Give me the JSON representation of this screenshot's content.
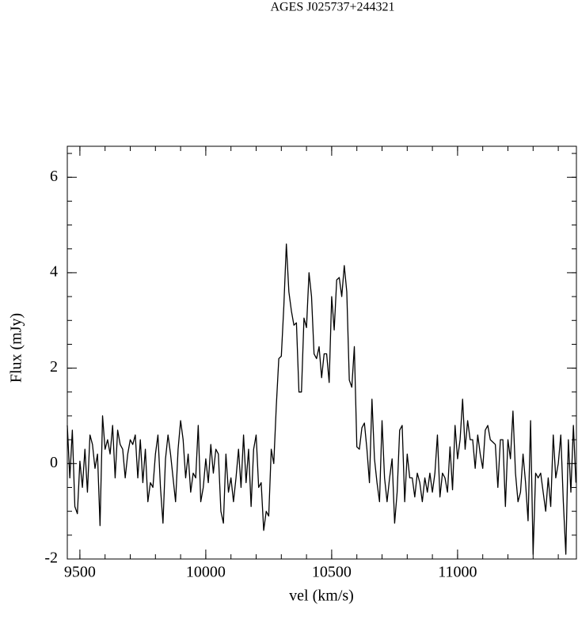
{
  "chart_data": {
    "type": "line",
    "title": "AGES J025737+244321",
    "xlabel": "vel (km/s)",
    "ylabel": "Flux (mJy)",
    "color": "#000000",
    "xlim": [
      9450,
      11472
    ],
    "ylim": [
      -2,
      6.65
    ],
    "xticks": [
      9500,
      10000,
      10500,
      11000
    ],
    "yticks": [
      -2,
      0,
      2,
      4,
      6
    ],
    "xminorticks": [
      9500,
      9600,
      9700,
      9800,
      9900,
      10000,
      10100,
      10200,
      10300,
      10400,
      10500,
      10600,
      10700,
      10800,
      10900,
      11000,
      11100,
      11200,
      11300,
      11400
    ],
    "yminorticks": [
      -1.5,
      -1,
      -0.5,
      0,
      0.5,
      1,
      1.5,
      2,
      2.5,
      3,
      3.5,
      4,
      4.5,
      5,
      5.5,
      6,
      6.5
    ],
    "x": [
      9450,
      9460,
      9470,
      9480,
      9490,
      9500,
      9510,
      9520,
      9530,
      9540,
      9550,
      9560,
      9570,
      9580,
      9590,
      9600,
      9610,
      9620,
      9630,
      9640,
      9650,
      9660,
      9670,
      9680,
      9690,
      9700,
      9710,
      9720,
      9730,
      9740,
      9750,
      9760,
      9770,
      9780,
      9790,
      9800,
      9810,
      9820,
      9830,
      9840,
      9850,
      9860,
      9870,
      9880,
      9890,
      9900,
      9910,
      9920,
      9930,
      9940,
      9950,
      9960,
      9970,
      9980,
      9990,
      10000,
      10010,
      10020,
      10030,
      10040,
      10050,
      10060,
      10070,
      10080,
      10090,
      10100,
      10110,
      10120,
      10130,
      10140,
      10150,
      10160,
      10170,
      10180,
      10190,
      10200,
      10210,
      10220,
      10230,
      10240,
      10250,
      10260,
      10270,
      10280,
      10290,
      10300,
      10310,
      10320,
      10330,
      10340,
      10350,
      10360,
      10370,
      10380,
      10390,
      10400,
      10410,
      10420,
      10430,
      10440,
      10450,
      10460,
      10470,
      10480,
      10490,
      10500,
      10510,
      10520,
      10530,
      10540,
      10550,
      10560,
      10570,
      10580,
      10590,
      10600,
      10610,
      10620,
      10630,
      10640,
      10650,
      10660,
      10670,
      10680,
      10690,
      10700,
      10710,
      10720,
      10730,
      10740,
      10750,
      10760,
      10770,
      10780,
      10790,
      10800,
      10810,
      10820,
      10830,
      10840,
      10850,
      10860,
      10870,
      10880,
      10890,
      10900,
      10910,
      10920,
      10930,
      10940,
      10950,
      10960,
      10970,
      10980,
      10990,
      11000,
      11010,
      11020,
      11030,
      11040,
      11050,
      11060,
      11070,
      11080,
      11090,
      11100,
      11110,
      11120,
      11130,
      11140,
      11150,
      11160,
      11170,
      11180,
      11190,
      11200,
      11210,
      11220,
      11230,
      11240,
      11250,
      11260,
      11270,
      11280,
      11290,
      11300,
      11310,
      11320,
      11330,
      11340,
      11350,
      11360,
      11370,
      11380,
      11390,
      11400,
      11410,
      11420,
      11430,
      11440,
      11450,
      11460,
      11470
    ],
    "values": [
      0.8,
      -0.3,
      0.7,
      -0.9,
      -1.05,
      0.05,
      -0.5,
      0.3,
      -0.6,
      0.6,
      0.4,
      -0.1,
      0.2,
      -1.3,
      1.0,
      0.3,
      0.5,
      0.2,
      0.8,
      -0.3,
      0.7,
      0.4,
      0.3,
      -0.3,
      0.2,
      0.5,
      0.4,
      0.6,
      -0.3,
      0.5,
      -0.4,
      0.3,
      -0.8,
      -0.4,
      -0.5,
      0.2,
      0.6,
      -0.5,
      -1.25,
      0.1,
      0.6,
      0.2,
      -0.3,
      -0.8,
      0.3,
      0.9,
      0.5,
      -0.3,
      0.2,
      -0.6,
      -0.2,
      -0.3,
      0.8,
      -0.8,
      -0.5,
      0.1,
      -0.4,
      0.4,
      -0.2,
      0.3,
      0.2,
      -1.0,
      -1.25,
      0.2,
      -0.6,
      -0.3,
      -0.8,
      -0.3,
      0.3,
      -0.5,
      0.6,
      -0.4,
      0.3,
      -0.9,
      0.3,
      0.6,
      -0.5,
      -0.4,
      -1.4,
      -1.0,
      -1.1,
      0.3,
      0.0,
      1.2,
      2.2,
      2.25,
      3.3,
      4.6,
      3.6,
      3.2,
      2.9,
      2.95,
      1.5,
      1.5,
      3.05,
      2.85,
      4.0,
      3.5,
      2.3,
      2.2,
      2.45,
      1.8,
      2.3,
      2.3,
      1.7,
      3.5,
      2.8,
      3.85,
      3.9,
      3.5,
      4.15,
      3.6,
      1.75,
      1.6,
      2.45,
      0.35,
      0.3,
      0.75,
      0.85,
      0.3,
      -0.4,
      1.35,
      0.1,
      -0.4,
      -0.8,
      0.9,
      -0.3,
      -0.8,
      -0.3,
      0.1,
      -1.25,
      -0.6,
      0.7,
      0.8,
      -0.8,
      0.2,
      -0.3,
      -0.3,
      -0.7,
      -0.2,
      -0.4,
      -0.8,
      -0.3,
      -0.6,
      -0.2,
      -0.6,
      -0.2,
      0.6,
      -0.7,
      -0.2,
      -0.3,
      -0.6,
      0.35,
      -0.55,
      0.8,
      0.1,
      0.5,
      1.35,
      0.3,
      0.9,
      0.5,
      0.5,
      -0.1,
      0.6,
      0.2,
      -0.1,
      0.7,
      0.8,
      0.5,
      0.45,
      0.4,
      -0.5,
      0.5,
      0.5,
      -0.9,
      0.5,
      0.1,
      1.1,
      -0.2,
      -0.8,
      -0.6,
      0.2,
      -0.4,
      -1.2,
      0.9,
      -1.9,
      -0.2,
      -0.3,
      -0.2,
      -0.6,
      -1.0,
      -0.3,
      -0.9,
      0.6,
      -0.3,
      0.0,
      0.6,
      -0.8,
      -1.9,
      0.5,
      -0.6,
      0.8,
      -0.4
    ]
  }
}
